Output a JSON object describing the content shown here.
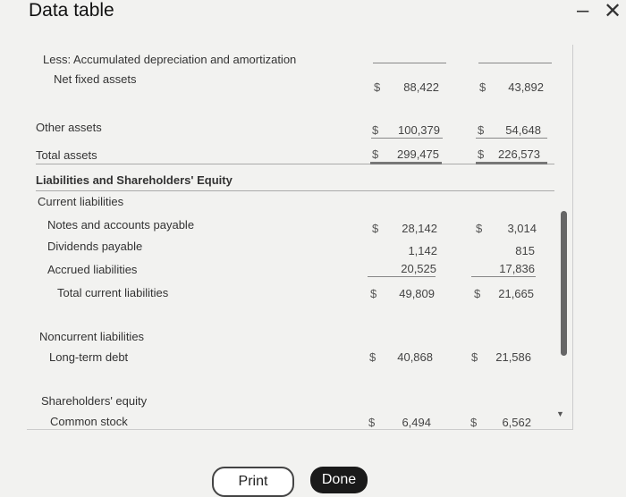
{
  "title": "Data table",
  "window": {
    "minimize": "–",
    "close": "✕"
  },
  "rows": {
    "accum": "Less: Accumulated depreciation and amortization",
    "net_fixed": {
      "label": "Net fixed assets",
      "a": "88,422",
      "b": "43,892"
    },
    "other": {
      "label": "Other assets",
      "a": "100,379",
      "b": "54,648"
    },
    "total_assets": {
      "label": "Total assets",
      "a": "299,475",
      "b": "226,573"
    },
    "liab_header": "Liabilities and Shareholders' Equity",
    "current": "Current liabilities",
    "notes": {
      "label": "Notes and accounts payable",
      "a": "28,142",
      "b": "3,014"
    },
    "dividends": {
      "label": "Dividends payable",
      "a": "1,142",
      "b": "815"
    },
    "accrued": {
      "label": "Accrued liabilities",
      "a": "20,525",
      "b": "17,836"
    },
    "total_current": {
      "label": "Total current liabilities",
      "a": "49,809",
      "b": "21,665"
    },
    "noncurrent": "Noncurrent liabilities",
    "ltd": {
      "label": "Long-term debt",
      "a": "40,868",
      "b": "21,586"
    },
    "equity": "Shareholders' equity",
    "common": {
      "label": "Common stock",
      "a": "6,494",
      "b": "6,562"
    }
  },
  "dollar": "$",
  "buttons": {
    "print": "Print",
    "done": "Done"
  }
}
